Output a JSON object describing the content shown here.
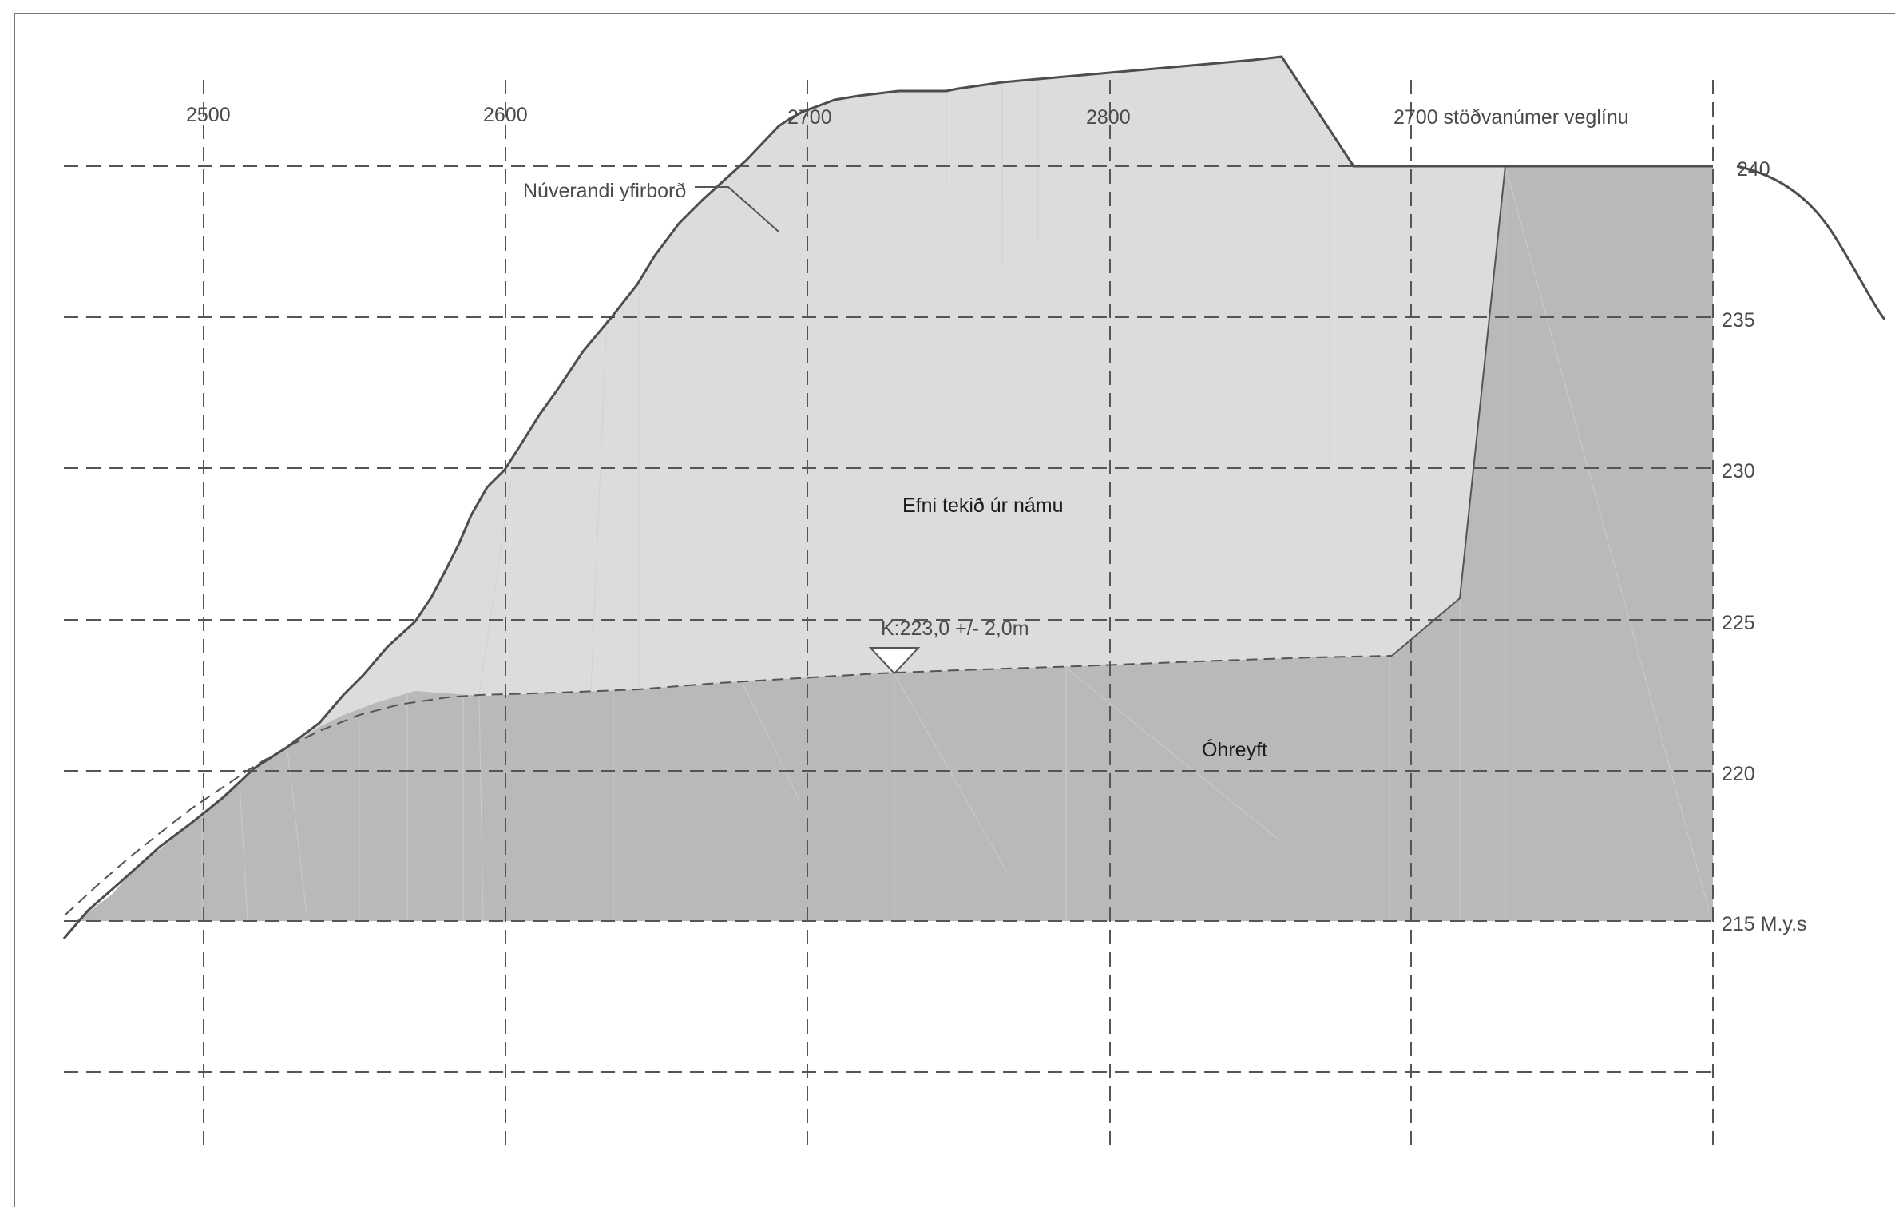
{
  "station_labels": [
    "2500",
    "2600",
    "2700",
    "2800",
    "2700 stöðvanúmer veglínu"
  ],
  "elevation_labels": [
    "240",
    "235",
    "230",
    "225",
    "220",
    "215 M.y.s"
  ],
  "annotations": {
    "surface": "Núverandi yfirborð",
    "excavated": "Efni tekið úr námu",
    "undisturbed": "Óhreyft",
    "floor_level": "K:223,0 +/- 2,0m"
  },
  "colors": {
    "excavated_fill": "#dcdcdc",
    "undisturbed_fill": "#b9b9b9",
    "surface_line": "#4d4d4d",
    "grid_line": "#555555"
  }
}
